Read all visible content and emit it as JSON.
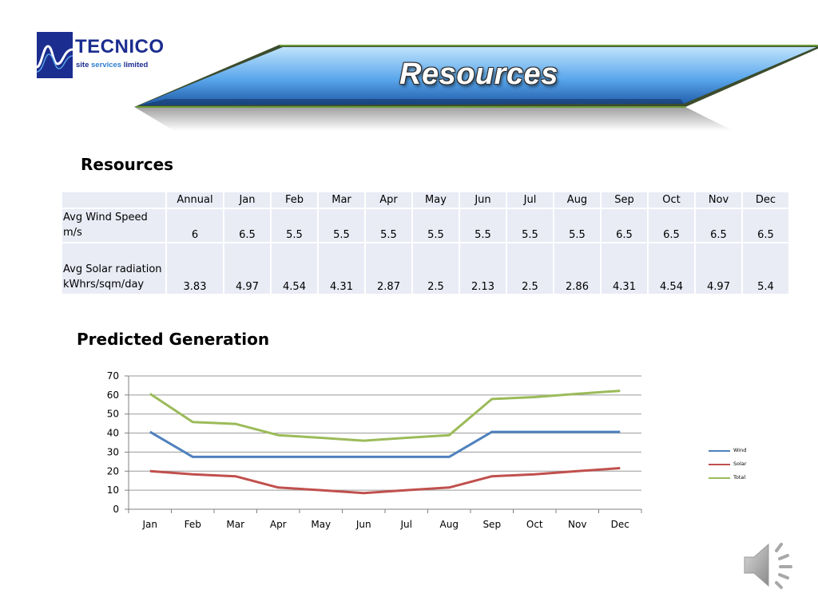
{
  "logo": {
    "brand": "TECNICO",
    "sub": [
      "site",
      "services",
      "limited"
    ]
  },
  "banner": {
    "title": "Resources"
  },
  "resources_heading": "Resources",
  "table": {
    "header": [
      "",
      "Annual",
      "Jan",
      "Feb",
      "Mar",
      "Apr",
      "May",
      "Jun",
      "Jul",
      "Aug",
      "Sep",
      "Oct",
      "Nov",
      "Dec"
    ],
    "rows": [
      {
        "label": [
          "Avg Wind Speed",
          "m/s"
        ],
        "values": [
          "6",
          "6.5",
          "5.5",
          "5.5",
          "5.5",
          "5.5",
          "5.5",
          "5.5",
          "5.5",
          "6.5",
          "6.5",
          "6.5",
          "6.5"
        ]
      },
      {
        "label": [
          "Avg Solar radiation",
          "kWhrs/sqm/day"
        ],
        "values": [
          "3.83",
          "4.97",
          "4.54",
          "4.31",
          "2.87",
          "2.5",
          "2.13",
          "2.5",
          "2.86",
          "4.31",
          "4.54",
          "4.97",
          "5.4"
        ]
      }
    ]
  },
  "predicted_heading": "Predicted Generation",
  "chart_data": {
    "type": "line",
    "categories": [
      "Jan",
      "Feb",
      "Mar",
      "Apr",
      "May",
      "Jun",
      "Jul",
      "Aug",
      "Sep",
      "Oct",
      "Nov",
      "Dec"
    ],
    "series": [
      {
        "name": "Wind",
        "color": "#4f81bd",
        "values": [
          40.6,
          27.5,
          27.5,
          27.5,
          27.5,
          27.5,
          27.5,
          27.5,
          40.6,
          40.6,
          40.6,
          40.6
        ]
      },
      {
        "name": "Solar",
        "color": "#c0504d",
        "values": [
          20.0,
          18.3,
          17.3,
          11.4,
          10.0,
          8.5,
          10.0,
          11.4,
          17.3,
          18.3,
          20.0,
          21.6
        ]
      },
      {
        "name": "Total",
        "color": "#9bbb59",
        "values": [
          60.6,
          45.8,
          44.8,
          38.9,
          37.5,
          36.0,
          37.5,
          38.9,
          57.9,
          58.9,
          60.6,
          62.2
        ]
      }
    ],
    "ylim": [
      0,
      70
    ],
    "yticks": [
      0,
      10,
      20,
      30,
      40,
      50,
      60,
      70
    ],
    "grid": true,
    "legend": "right"
  }
}
